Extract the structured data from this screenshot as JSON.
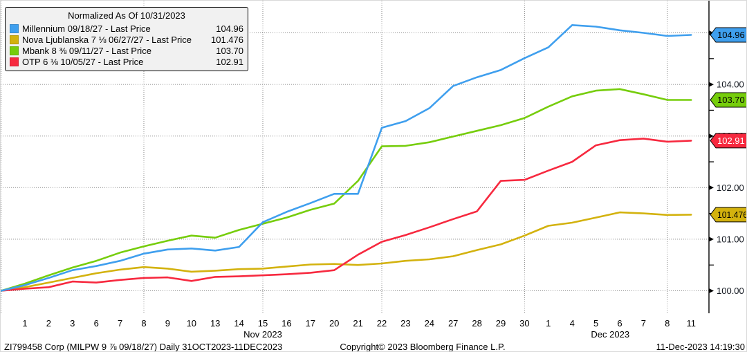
{
  "legend": {
    "title": "Normalized As Of 10/31/2023",
    "items": [
      {
        "label": "Millennium 09/18/27 - Last Price",
        "value": "104.96",
        "color": "#3f9fee"
      },
      {
        "label": "Nova Ljublanska 7 ⅛ 06/27/27 - Last Price",
        "value": "101.476",
        "color": "#d3b20e"
      },
      {
        "label": "Mbank 8 ⅜ 09/11/27 - Last Price",
        "value": "103.70",
        "color": "#76cd0c"
      },
      {
        "label": "OTP 6 ⅛ 10/05/27 - Last Price",
        "value": "102.91",
        "color": "#f7293f"
      }
    ]
  },
  "chart_data": {
    "type": "line",
    "title": "Normalized As Of 10/31/2023",
    "xlabel": "",
    "ylabel": "Normalized Price",
    "x_categories": [
      "Oct 31",
      "Nov 1",
      "Nov 2",
      "Nov 3",
      "Nov 6",
      "Nov 7",
      "Nov 8",
      "Nov 9",
      "Nov 10",
      "Nov 13",
      "Nov 14",
      "Nov 15",
      "Nov 16",
      "Nov 17",
      "Nov 20",
      "Nov 21",
      "Nov 22",
      "Nov 23",
      "Nov 24",
      "Nov 27",
      "Nov 28",
      "Nov 29",
      "Nov 30",
      "Dec 1",
      "Dec 4",
      "Dec 5",
      "Dec 6",
      "Dec 7",
      "Dec 8",
      "Dec 11"
    ],
    "x_tick_labels": [
      "1",
      "2",
      "3",
      "6",
      "7",
      "8",
      "9",
      "10",
      "13",
      "14",
      "15",
      "16",
      "17",
      "20",
      "21",
      "22",
      "23",
      "24",
      "27",
      "28",
      "29",
      "30",
      "1",
      "4",
      "5",
      "6",
      "7",
      "8",
      "11"
    ],
    "month_labels": [
      {
        "text": "Nov 2023",
        "center_index": 11
      },
      {
        "text": "Dec 2023",
        "center_index": 25.6
      }
    ],
    "series": [
      {
        "name": "Nova Ljublanska 7 1/8 06/27/27",
        "color": "#d3b20e",
        "badge": "101.476",
        "badge_text": "#000000",
        "values": [
          100.0,
          100.07,
          100.16,
          100.25,
          100.34,
          100.41,
          100.46,
          100.43,
          100.37,
          100.39,
          100.42,
          100.43,
          100.47,
          100.51,
          100.52,
          100.5,
          100.53,
          100.58,
          100.61,
          100.67,
          100.79,
          100.9,
          101.07,
          101.26,
          101.32,
          101.42,
          101.52,
          101.5,
          101.47,
          101.476
        ]
      },
      {
        "name": "OTP 6 1/8 10/05/27",
        "color": "#f7293f",
        "badge": "102.91",
        "badge_text": "#ffffff",
        "values": [
          100.0,
          100.04,
          100.07,
          100.18,
          100.16,
          100.21,
          100.25,
          100.26,
          100.19,
          100.27,
          100.28,
          100.3,
          100.32,
          100.35,
          100.4,
          100.7,
          100.95,
          101.08,
          101.23,
          101.39,
          101.54,
          102.13,
          102.15,
          102.33,
          102.5,
          102.82,
          102.92,
          102.95,
          102.89,
          102.91
        ]
      },
      {
        "name": "Mbank 8 3/8 09/11/27",
        "color": "#76cd0c",
        "badge": "103.70",
        "badge_text": "#000000",
        "values": [
          100.0,
          100.14,
          100.3,
          100.45,
          100.58,
          100.74,
          100.86,
          100.97,
          101.07,
          101.03,
          101.18,
          101.3,
          101.42,
          101.57,
          101.69,
          102.13,
          102.8,
          102.81,
          102.88,
          102.99,
          103.1,
          103.21,
          103.35,
          103.57,
          103.77,
          103.88,
          103.91,
          103.81,
          103.7,
          103.7
        ]
      },
      {
        "name": "Millennium 09/18/27",
        "color": "#3f9fee",
        "badge": "104.96",
        "badge_text": "#000000",
        "values": [
          100.0,
          100.11,
          100.25,
          100.4,
          100.48,
          100.58,
          100.72,
          100.8,
          100.82,
          100.78,
          100.85,
          101.33,
          101.53,
          101.7,
          101.88,
          101.88,
          103.16,
          103.29,
          103.54,
          103.97,
          104.14,
          104.28,
          104.51,
          104.72,
          105.15,
          105.12,
          105.05,
          105.0,
          104.94,
          104.96
        ]
      }
    ],
    "y_axis": {
      "major_ticks": [
        100,
        101,
        102,
        103,
        104,
        105
      ],
      "major_labels": [
        "100.00",
        "101.00",
        "102.00",
        "103.00",
        "104.00",
        "105.00"
      ],
      "minor_ticks": [
        100.5,
        101.5,
        102.5,
        103.5,
        104.5
      ],
      "ylim": [
        99.56,
        105.63
      ]
    },
    "grid": {
      "horizontal_values": [
        100,
        101,
        102,
        103,
        104,
        105
      ],
      "vertical_day_indices": [
        0,
        6,
        11,
        16,
        22,
        28
      ],
      "style": "dotted"
    },
    "legend_position": "top-left",
    "colors": {
      "gridline": "#8a8a8a",
      "axis": "#000000",
      "tick_label": "#10151d"
    }
  },
  "footer": {
    "left": "ZI799458 Corp (MILPW 9 ⅞ 09/18/27)  Daily 31OCT2023-11DEC2023",
    "center": "Copyright© 2023 Bloomberg Finance L.P.",
    "right": "11-Dec-2023 14:19:30"
  }
}
